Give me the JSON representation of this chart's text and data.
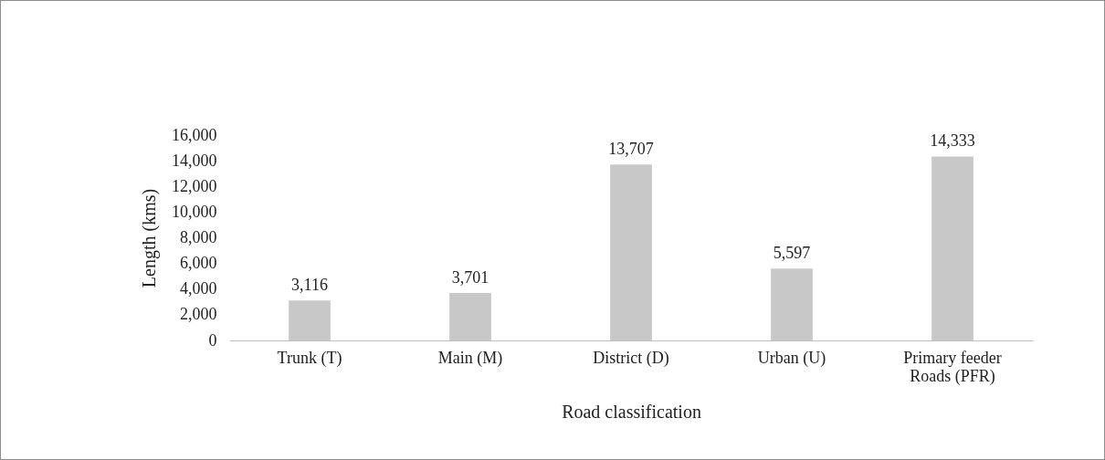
{
  "chart_data": {
    "type": "bar",
    "xlabel": "Road classification",
    "ylabel": "Length (kms)",
    "categories": [
      "Trunk (T)",
      "Main (M)",
      "District (D)",
      "Urban (U)",
      "Primary feeder Roads (PFR)"
    ],
    "values": [
      3116,
      3701,
      13707,
      5597,
      14333
    ],
    "value_labels": [
      "3,116",
      "3,701",
      "13,707",
      "5,597",
      "14,333"
    ],
    "color": "#c8c8c8",
    "ylim": [
      0,
      16000
    ],
    "yticks": [
      0,
      {
        "value": 2000,
        "label": "2,000"
      },
      {
        "value": 4000,
        "label": "4,000"
      },
      {
        "value": 6000,
        "label": "6,000"
      },
      {
        "value": 8000,
        "label": "8,000"
      },
      {
        "value": 10000,
        "label": "10,000"
      },
      {
        "value": 12000,
        "label": "12,000"
      },
      {
        "value": 14000,
        "label": "14,000"
      },
      {
        "value": 16000,
        "label": "16,000"
      }
    ],
    "grid": false
  }
}
